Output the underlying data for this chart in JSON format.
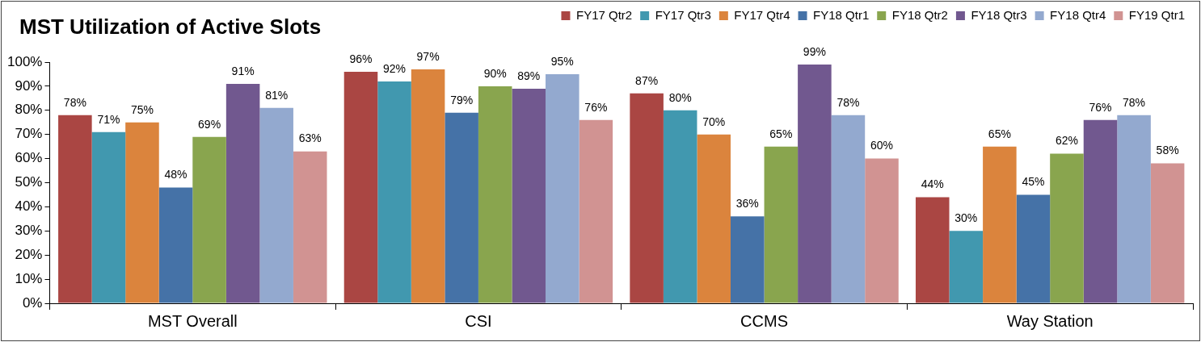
{
  "chart_data": {
    "type": "bar",
    "title": "MST Utilization of Active Slots",
    "categories": [
      "MST Overall",
      "CSI",
      "CCMS",
      "Way Station"
    ],
    "series": [
      {
        "name": "FY17 Qtr2",
        "color": "#aa4643",
        "values": [
          78,
          96,
          87,
          44
        ],
        "value_labels": [
          "78%",
          "96%",
          "87%",
          "44%"
        ]
      },
      {
        "name": "FY17 Qtr3",
        "color": "#4198af",
        "values": [
          71,
          92,
          80,
          30
        ],
        "value_labels": [
          "71%",
          "92%",
          "80%",
          "30%"
        ]
      },
      {
        "name": "FY17 Qtr4",
        "color": "#db843d",
        "values": [
          75,
          97,
          70,
          65
        ],
        "value_labels": [
          "75%",
          "97%",
          "70%",
          "65%"
        ]
      },
      {
        "name": "FY18 Qtr1",
        "color": "#4572a7",
        "values": [
          48,
          79,
          36,
          45
        ],
        "value_labels": [
          "48%",
          "79%",
          "36%",
          "45%"
        ]
      },
      {
        "name": "FY18 Qtr2",
        "color": "#89a54e",
        "values": [
          69,
          90,
          65,
          62
        ],
        "value_labels": [
          "69%",
          "90%",
          "65%",
          "62%"
        ]
      },
      {
        "name": "FY18 Qtr3",
        "color": "#71588f",
        "values": [
          91,
          89,
          99,
          76
        ],
        "value_labels": [
          "91%",
          "89%",
          "99%",
          "76%"
        ]
      },
      {
        "name": "FY18 Qtr4",
        "color": "#93a9cf",
        "values": [
          81,
          95,
          78,
          78
        ],
        "value_labels": [
          "81%",
          "95%",
          "78%",
          "78%"
        ]
      },
      {
        "name": "FY19 Qtr1",
        "color": "#d19392",
        "values": [
          63,
          76,
          60,
          58
        ],
        "value_labels": [
          "63%",
          "76%",
          "60%",
          "58%"
        ]
      }
    ],
    "ylim": [
      0,
      100
    ],
    "yticks": [
      {
        "value": 0,
        "label": "0%"
      },
      {
        "value": 10,
        "label": "10%"
      },
      {
        "value": 20,
        "label": "20%"
      },
      {
        "value": 30,
        "label": "30%"
      },
      {
        "value": 40,
        "label": "40%"
      },
      {
        "value": 50,
        "label": "50%"
      },
      {
        "value": 60,
        "label": "60%"
      },
      {
        "value": 70,
        "label": "70%"
      },
      {
        "value": 80,
        "label": "80%"
      },
      {
        "value": 90,
        "label": "90%"
      },
      {
        "value": 100,
        "label": "100%"
      }
    ],
    "grid": false,
    "legend": "top right"
  }
}
